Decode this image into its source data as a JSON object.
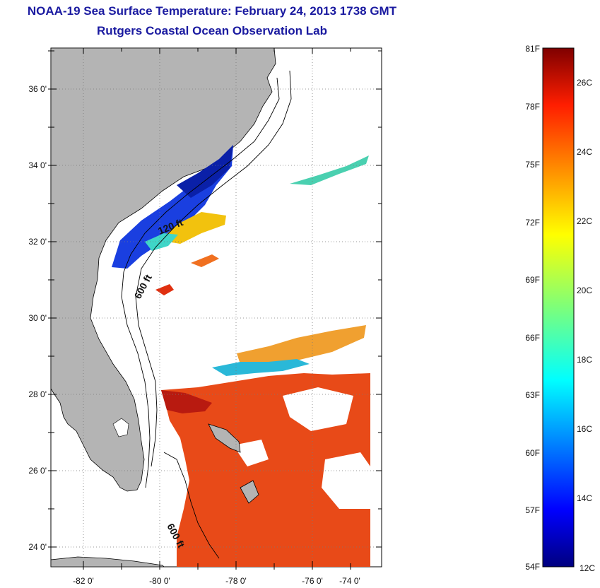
{
  "title": {
    "line1": "NOAA-19 Sea Surface Temperature:  February 24, 2013 1738 GMT",
    "line2": "Rutgers Coastal Ocean Observation Lab"
  },
  "map": {
    "lat_labels": [
      "36 0'",
      "34 0'",
      "32 0'",
      "30 0'",
      "28 0'",
      "26 0'",
      "24 0'"
    ],
    "lon_labels": [
      "-82 0'",
      "-80 0'",
      "-78 0'",
      "-76 0'",
      "-74 0'"
    ],
    "contour_labels": [
      "120 ft",
      "600 ft",
      "600 ft"
    ],
    "colors": {
      "land": "#b4b4b4",
      "water_nodata": "#ffffff",
      "coast": "#000000"
    }
  },
  "colorbar": {
    "fahrenheit_labels": [
      "81F",
      "78F",
      "75F",
      "72F",
      "69F",
      "66F",
      "63F",
      "60F",
      "57F",
      "54F"
    ],
    "celsius_labels": [
      "26C",
      "24C",
      "22C",
      "20C",
      "18C",
      "16C",
      "14C",
      "12C"
    ],
    "range_f": [
      54,
      81
    ],
    "colormap": "jet"
  }
}
